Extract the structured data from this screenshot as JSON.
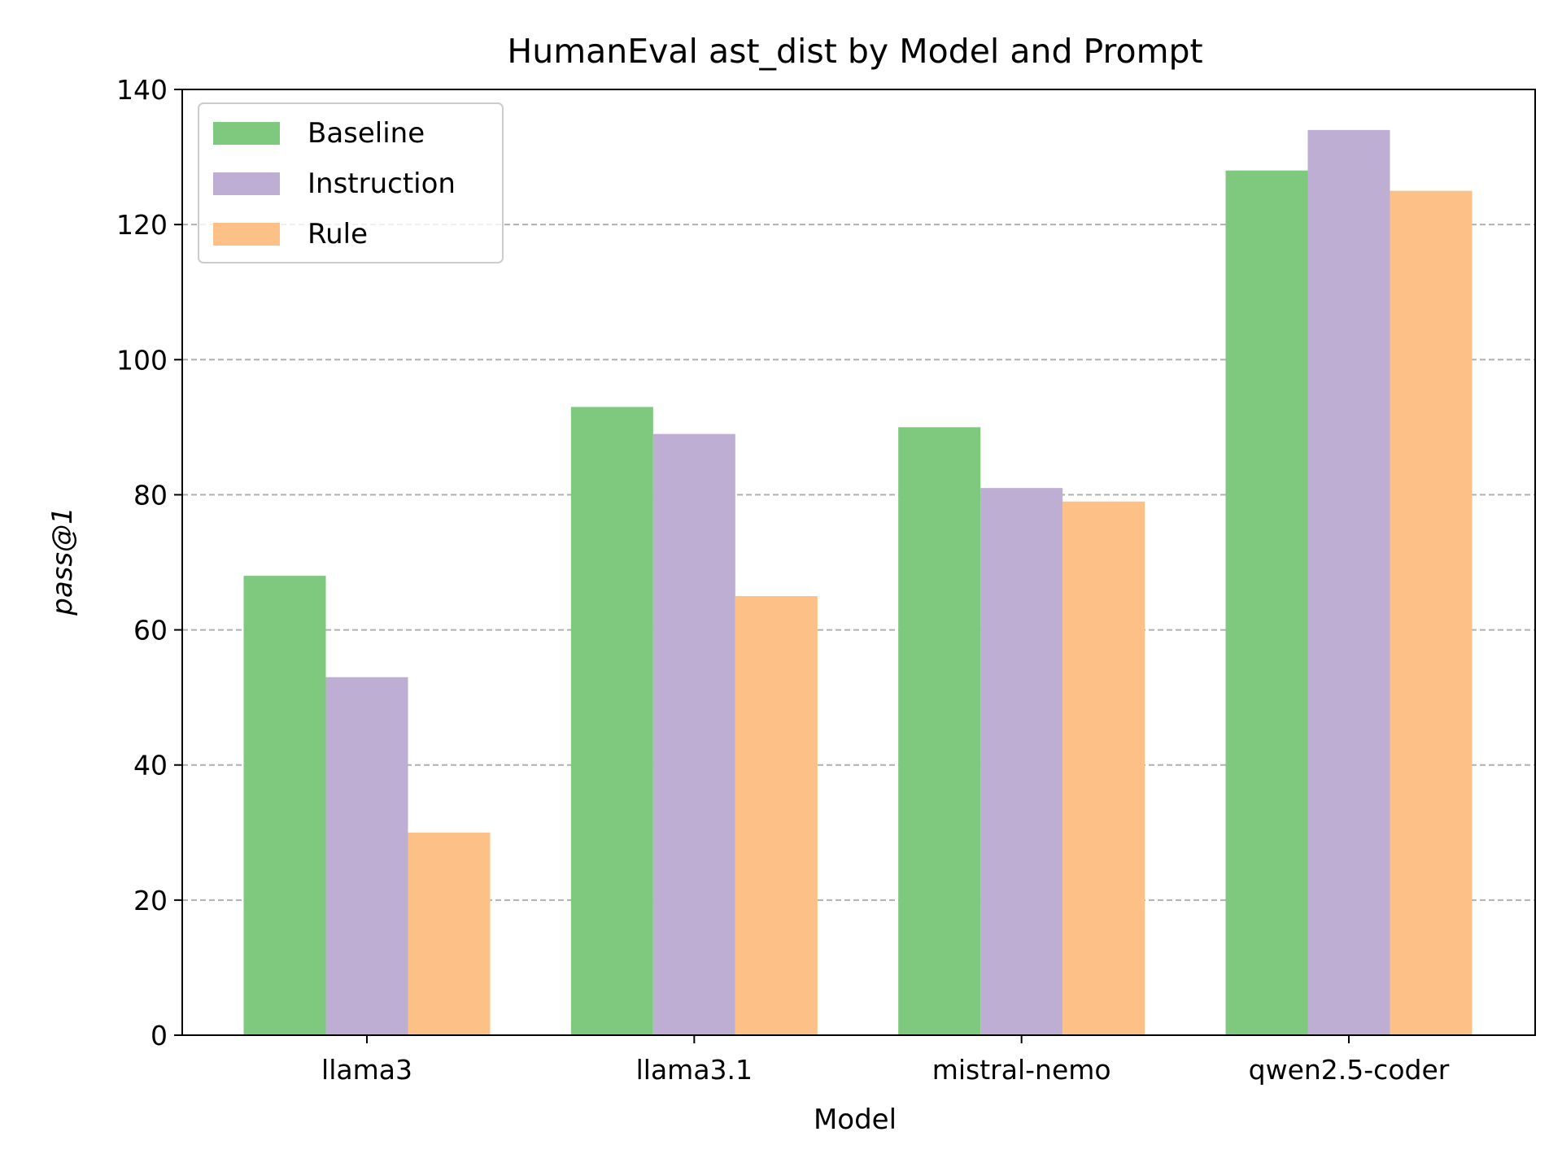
{
  "chart_data": {
    "type": "bar",
    "title": "HumanEval ast_dist by Model and Prompt",
    "xlabel": "Model",
    "ylabel": "pass@1",
    "categories": [
      "llama3",
      "llama3.1",
      "mistral-nemo",
      "qwen2.5-coder"
    ],
    "series": [
      {
        "name": "Baseline",
        "color": "#7fc97f",
        "values": [
          68,
          93,
          90,
          128
        ]
      },
      {
        "name": "Instruction",
        "color": "#beaed4",
        "values": [
          53,
          89,
          81,
          134
        ]
      },
      {
        "name": "Rule",
        "color": "#fdc086",
        "values": [
          30,
          65,
          79,
          125
        ]
      }
    ],
    "ylim": [
      0,
      140
    ],
    "yticks": [
      0,
      20,
      40,
      60,
      80,
      100,
      120,
      140
    ],
    "grid": "y-dashed",
    "legend_position": "top-left"
  }
}
